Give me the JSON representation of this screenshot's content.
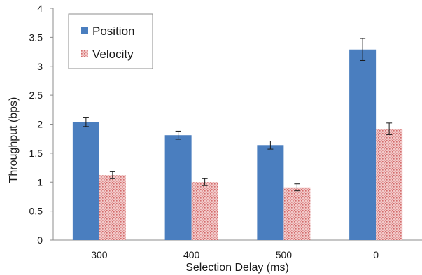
{
  "chart_data": {
    "type": "bar",
    "xlabel": "Selection Delay (ms)",
    "ylabel": "Throughput (bps)",
    "ylim": [
      0,
      4
    ],
    "yticks": [
      0,
      0.5,
      1,
      1.5,
      2,
      2.5,
      3,
      3.5,
      4
    ],
    "grid": false,
    "legend_position": "top-left",
    "categories": [
      "300",
      "400",
      "500",
      "0"
    ],
    "series": [
      {
        "name": "Position",
        "color": "#4a7ebf",
        "pattern": "solid",
        "values": [
          2.04,
          1.81,
          1.64,
          3.29
        ],
        "errors": [
          0.08,
          0.07,
          0.07,
          0.19
        ]
      },
      {
        "name": "Velocity",
        "color": "#e6a3a3",
        "pattern": "dotted",
        "values": [
          1.12,
          1.0,
          0.91,
          1.92
        ],
        "errors": [
          0.06,
          0.06,
          0.06,
          0.1
        ]
      }
    ]
  }
}
